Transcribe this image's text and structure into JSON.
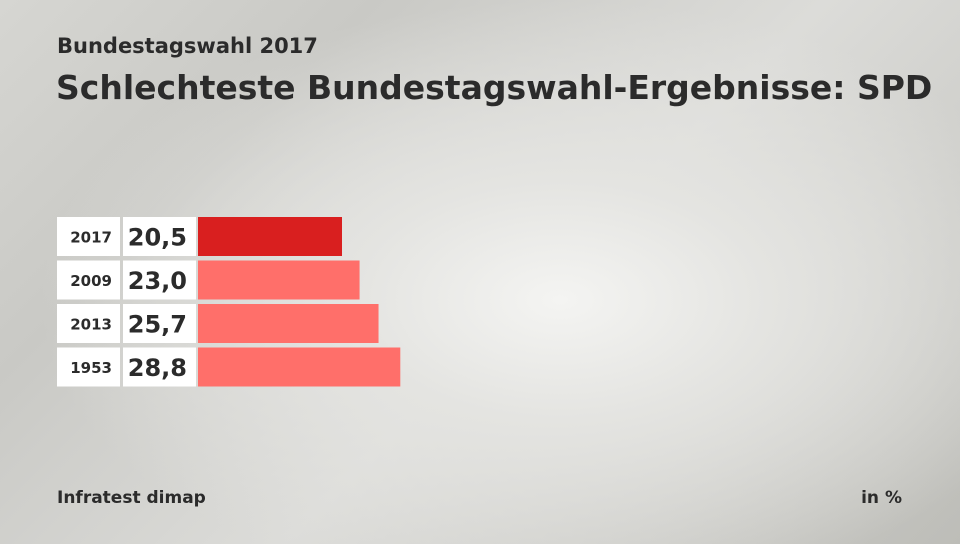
{
  "header": {
    "subtitle": "Bundestagswahl 2017",
    "title": "Schlechteste Bundestagswahl-Ergebnisse: SPD"
  },
  "footer": {
    "source": "Infratest dimap",
    "unit": "in %"
  },
  "colors": {
    "highlight": "#d91f1f",
    "bar": "#ff6f6a"
  },
  "chart_data": {
    "type": "bar",
    "orientation": "horizontal",
    "categories": [
      "2017",
      "2009",
      "2013",
      "1953"
    ],
    "values": [
      20.5,
      23.0,
      25.7,
      28.8
    ],
    "value_labels": [
      "20,5",
      "23,0",
      "25,7",
      "28,8"
    ],
    "highlighted_category": "2017",
    "title": "Schlechteste Bundestagswahl-Ergebnisse: SPD",
    "subtitle": "Bundestagswahl 2017",
    "unit": "in %",
    "grid": false
  }
}
